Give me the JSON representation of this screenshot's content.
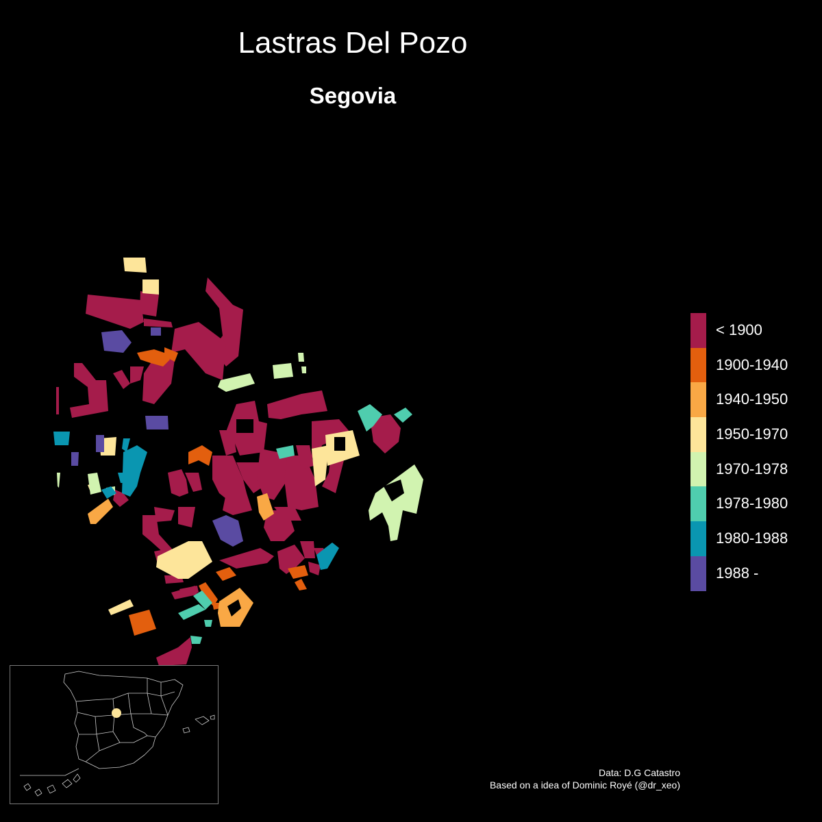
{
  "title": "Lastras Del Pozo",
  "subtitle": "Segovia",
  "legend": [
    {
      "label": "< 1900",
      "color": "#A51C4B"
    },
    {
      "label": "1900-1940",
      "color": "#E35F0E"
    },
    {
      "label": "1940-1950",
      "color": "#F9A845"
    },
    {
      "label": "1950-1970",
      "color": "#FDE59A"
    },
    {
      "label": "1970-1978",
      "color": "#D1F3B0"
    },
    {
      "label": "1978-1980",
      "color": "#4FCDAE"
    },
    {
      "label": "1980-1988",
      "color": "#0A96B1"
    },
    {
      "label": "1988 -",
      "color": "#5A4BA2"
    }
  ],
  "caption": {
    "line1": "Data: D.G Catastro",
    "line2": "Based on a idea of Dominic Royé (@dr_xeo)"
  },
  "inset": {
    "location_marker_color": "#FDE59A"
  }
}
